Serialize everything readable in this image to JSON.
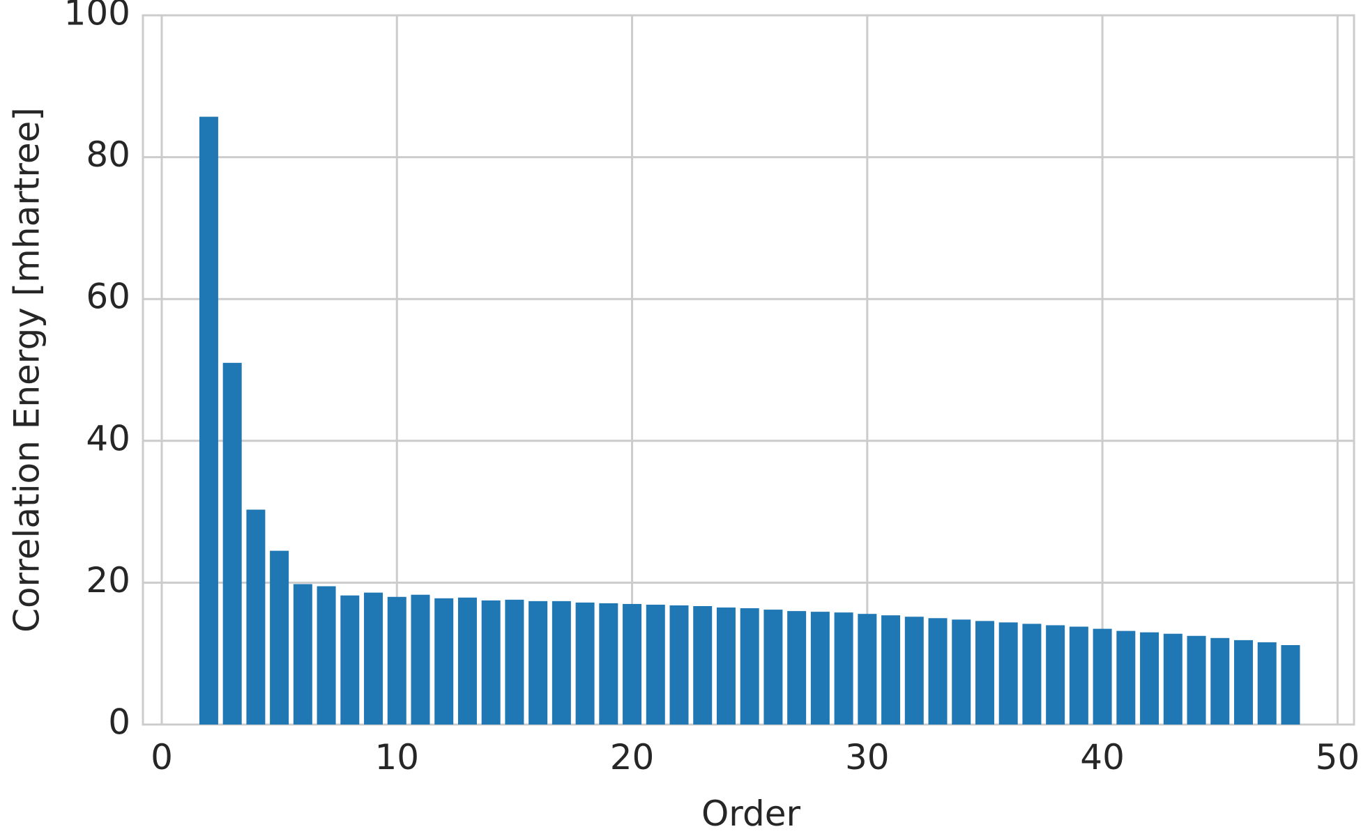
{
  "chart_data": {
    "type": "bar",
    "xlabel": "Order",
    "ylabel": "Correlation Energy [mhartree]",
    "x": [
      2,
      3,
      4,
      5,
      6,
      7,
      8,
      9,
      10,
      11,
      12,
      13,
      14,
      15,
      16,
      17,
      18,
      19,
      20,
      21,
      22,
      23,
      24,
      25,
      26,
      27,
      28,
      29,
      30,
      31,
      32,
      33,
      34,
      35,
      36,
      37,
      38,
      39,
      40,
      41,
      42,
      43,
      44,
      45,
      46,
      47,
      48
    ],
    "values": [
      85.7,
      51,
      30.3,
      24.5,
      19.8,
      19.5,
      18.2,
      18.6,
      18.0,
      18.3,
      17.8,
      17.9,
      17.5,
      17.6,
      17.4,
      17.4,
      17.2,
      17.1,
      17.0,
      16.9,
      16.8,
      16.7,
      16.5,
      16.4,
      16.2,
      16.0,
      15.9,
      15.8,
      15.6,
      15.4,
      15.2,
      15.0,
      14.8,
      14.6,
      14.4,
      14.2,
      14.0,
      13.8,
      13.5,
      13.2,
      13.0,
      12.8,
      12.5,
      12.2,
      11.9,
      11.6,
      11.2
    ],
    "color": "#1f77b4",
    "xlim": [
      -0.8,
      50.7
    ],
    "xticks": [
      0,
      10,
      20,
      30,
      40,
      50
    ],
    "ylim": [
      0,
      100
    ],
    "yticks": [
      0,
      20,
      40,
      60,
      80,
      100
    ],
    "grid": true
  }
}
